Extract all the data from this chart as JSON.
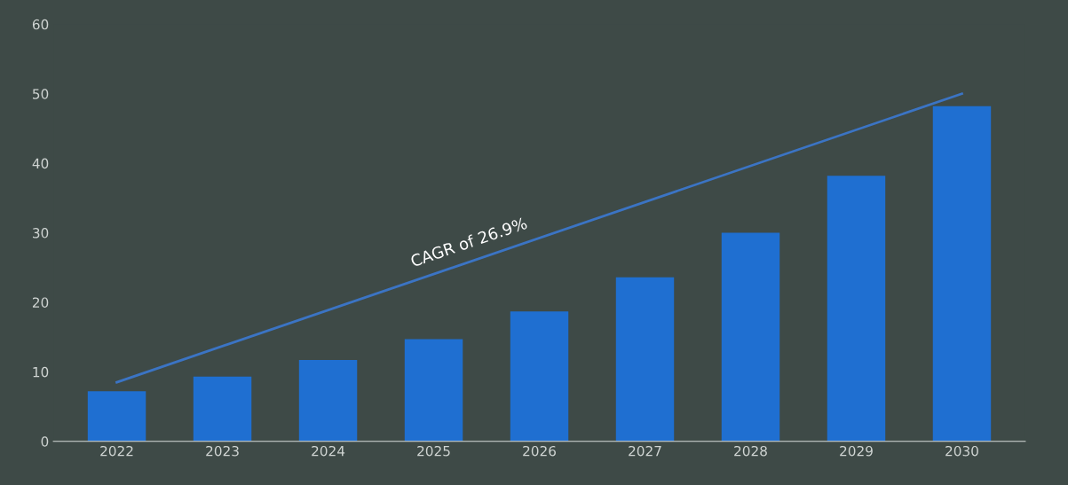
{
  "chart_data": {
    "type": "bar",
    "categories": [
      "2022",
      "2023",
      "2024",
      "2025",
      "2026",
      "2027",
      "2028",
      "2029",
      "2030"
    ],
    "series": [
      {
        "color": "#1f6fd1",
        "values": [
          7.2,
          9.3,
          11.7,
          14.7,
          18.7,
          23.6,
          30.0,
          38.2,
          48.2
        ]
      },
      {
        "type": "line",
        "color": "#3b74c4",
        "values": [
          8.5,
          null,
          null,
          null,
          null,
          null,
          null,
          null,
          50
        ]
      }
    ],
    "annotations": [
      "CAGR of 26.9%"
    ],
    "ylim": [
      0,
      60
    ],
    "yticks": [
      0,
      10,
      20,
      30,
      40,
      50,
      60
    ],
    "grid": false,
    "legend": false
  }
}
